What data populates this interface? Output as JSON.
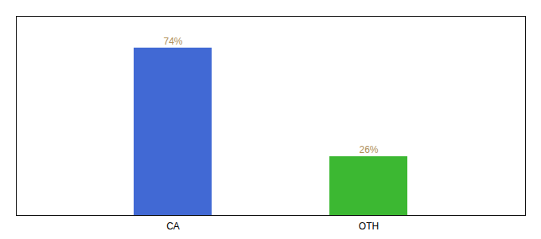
{
  "chart_data": {
    "type": "bar",
    "categories": [
      "CA",
      "OTH"
    ],
    "values": [
      74,
      26
    ],
    "value_labels": [
      "74%",
      "26%"
    ],
    "colors": [
      "#4169d4",
      "#3cb832"
    ],
    "ylim": [
      0,
      88
    ],
    "data_labels": true,
    "tick_labels": "x",
    "grid": false
  }
}
